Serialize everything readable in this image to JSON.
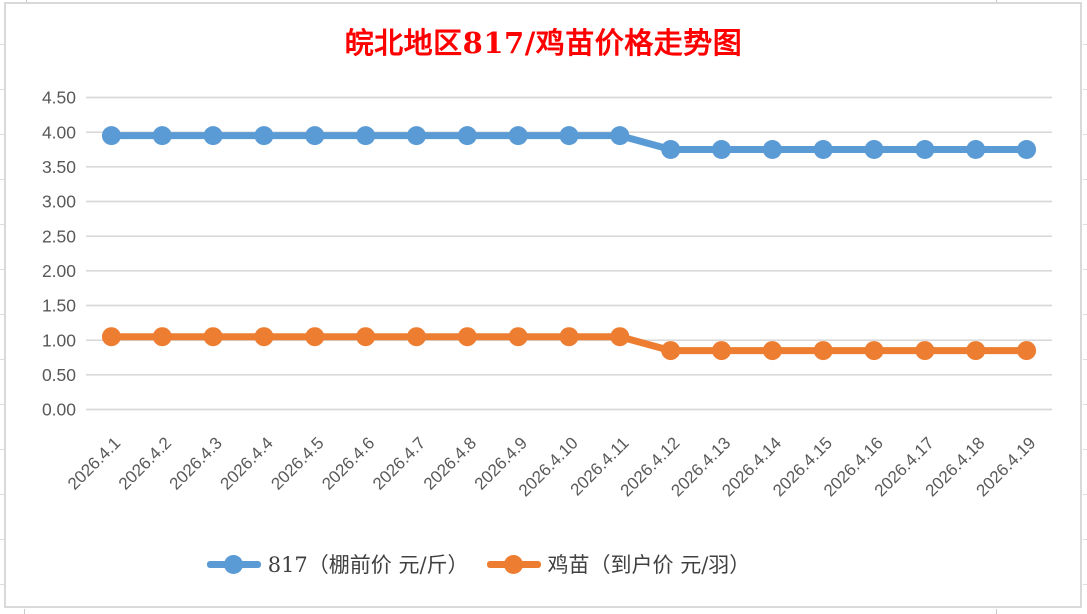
{
  "title": {
    "text": "皖北地区817/鸡苗价格走势图",
    "color": "#FF0000"
  },
  "chart_data": {
    "type": "line",
    "title": "皖北地区817/鸡苗价格走势图",
    "categories": [
      "2026.4.1",
      "2026.4.2",
      "2026.4.3",
      "2026.4.4",
      "2026.4.5",
      "2026.4.6",
      "2026.4.7",
      "2026.4.8",
      "2026.4.9",
      "2026.4.10",
      "2026.4.11",
      "2026.4.12",
      "2026.4.13",
      "2026.4.14",
      "2026.4.15",
      "2026.4.16",
      "2026.4.17",
      "2026.4.18",
      "2026.4.19"
    ],
    "series": [
      {
        "name": "817（棚前价 元/斤）",
        "color": "#5B9BD5",
        "values": [
          3.95,
          3.95,
          3.95,
          3.95,
          3.95,
          3.95,
          3.95,
          3.95,
          3.95,
          3.95,
          3.95,
          3.75,
          3.75,
          3.75,
          3.75,
          3.75,
          3.75,
          3.75,
          3.75
        ]
      },
      {
        "name": "鸡苗（到户价 元/羽）",
        "color": "#ED7D31",
        "values": [
          1.05,
          1.05,
          1.05,
          1.05,
          1.05,
          1.05,
          1.05,
          1.05,
          1.05,
          1.05,
          1.05,
          0.85,
          0.85,
          0.85,
          0.85,
          0.85,
          0.85,
          0.85,
          0.85
        ]
      }
    ],
    "xlabel": "",
    "ylabel": "",
    "ylim": [
      0,
      4.5
    ],
    "ytick_step": 0.5,
    "ytick_labels": [
      "0.00",
      "0.50",
      "1.00",
      "1.50",
      "2.00",
      "2.50",
      "3.00",
      "3.50",
      "4.00",
      "4.50"
    ],
    "grid": true,
    "legend_position": "bottom"
  },
  "style": {
    "grid_color": "#D9D9D9",
    "axis_text_color": "#595959",
    "legend_text_color": "#404040",
    "frame_border_color": "#D9D9D9",
    "background": "#FFFFFF"
  }
}
